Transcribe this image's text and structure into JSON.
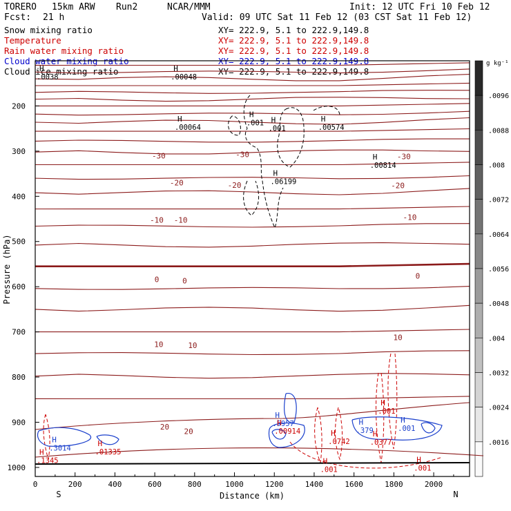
{
  "header": {
    "model": "TORERO",
    "res": "15km ARW",
    "run": "Run2",
    "org": "NCAR/MMM",
    "init": "Init: 12 UTC Fri 10 Feb 12",
    "fcst": "Fcst:",
    "fcst_hours": "21 h",
    "valid": "Valid: 09 UTC Sat 11 Feb 12 (03 CST Sat 11 Feb 12)"
  },
  "legend": [
    {
      "label": "Snow mixing ratio",
      "xy": "XY= 222.9,  5.1 to 222.9,149.8",
      "color": "#000000"
    },
    {
      "label": "Temperature",
      "xy": "XY= 222.9,  5.1 to 222.9,149.8",
      "color": "#cc0000"
    },
    {
      "label": "Rain water mixing ratio",
      "xy": "XY= 222.9,  5.1 to 222.9,149.8",
      "color": "#cc0000"
    },
    {
      "label": "Cloud water mixing ratio",
      "xy": "XY= 222.9,  5.1 to 222.9,149.8",
      "color": "#0000cc"
    },
    {
      "label": "Cloud ice mixing ratio",
      "xy": "XY= 222.9,  5.1 to 222.9,149.8",
      "color": "#000000"
    }
  ],
  "colorbar": {
    "units": "g kg⁻¹",
    "labels": [
      ".0096",
      ".0088",
      ".008",
      ".0072",
      ".0064",
      ".0056",
      ".0048",
      ".004",
      ".0032",
      ".0024",
      ".0016"
    ]
  },
  "chart_data": {
    "type": "cross-section contour",
    "xlabel": "Distance (km)",
    "ylabel": "Pressure (hPa)",
    "xlim": [
      0,
      2180
    ],
    "ylim": [
      1020,
      100
    ],
    "x_ticks": [
      0,
      200,
      400,
      600,
      800,
      1000,
      1200,
      1400,
      1600,
      1800,
      2000
    ],
    "y_ticks": [
      200,
      300,
      400,
      500,
      600,
      700,
      800,
      900,
      1000
    ],
    "x_end_labels": {
      "left": "S",
      "right": "N"
    },
    "temperature_labels": [
      {
        "text": "-30",
        "x": 620,
        "p": 310
      },
      {
        "text": "-30",
        "x": 1040,
        "p": 307
      },
      {
        "text": "-30",
        "x": 1850,
        "p": 312
      },
      {
        "text": "-20",
        "x": 710,
        "p": 370
      },
      {
        "text": "-20",
        "x": 1000,
        "p": 375
      },
      {
        "text": "-20",
        "x": 1820,
        "p": 376
      },
      {
        "text": "-10",
        "x": 610,
        "p": 452
      },
      {
        "text": "-10",
        "x": 730,
        "p": 452
      },
      {
        "text": "-10",
        "x": 1880,
        "p": 446
      },
      {
        "text": "0",
        "x": 610,
        "p": 584
      },
      {
        "text": "0",
        "x": 750,
        "p": 587
      },
      {
        "text": "0",
        "x": 1920,
        "p": 576
      },
      {
        "text": "10",
        "x": 620,
        "p": 727
      },
      {
        "text": "10",
        "x": 790,
        "p": 730
      },
      {
        "text": "10",
        "x": 1820,
        "p": 712
      },
      {
        "text": "20",
        "x": 650,
        "p": 910
      },
      {
        "text": "20",
        "x": 770,
        "p": 920
      }
    ],
    "maxima": [
      {
        "series": "snow",
        "label": ".00048",
        "x": 680,
        "p": 138
      },
      {
        "series": "snow",
        "label": ".00064",
        "x": 700,
        "p": 250
      },
      {
        "series": "snow",
        "label": ".001",
        "x": 1060,
        "p": 240
      },
      {
        "series": "snow",
        "label": ".001",
        "x": 1170,
        "p": 252
      },
      {
        "series": "snow",
        "label": ".00574",
        "x": 1420,
        "p": 250
      },
      {
        "series": "snow",
        "label": ".00814",
        "x": 1680,
        "p": 334
      },
      {
        "series": "snow",
        "label": ".06199",
        "x": 1180,
        "p": 370
      },
      {
        "series": "cloud",
        "label": ".5957",
        "x": 1190,
        "p": 905
      },
      {
        "series": "rain",
        "label": ".00914",
        "x": 1200,
        "p": 922
      },
      {
        "series": "rain",
        "label": ".0742",
        "x": 1470,
        "p": 945
      },
      {
        "series": "cloud",
        "label": ".379",
        "x": 1610,
        "p": 921
      },
      {
        "series": "cloud",
        "label": ".001",
        "x": 1820,
        "p": 916
      },
      {
        "series": "rain",
        "label": ".001",
        "x": 1720,
        "p": 878
      },
      {
        "series": "rain",
        "label": ".0377",
        "x": 1680,
        "p": 947
      },
      {
        "series": "cloud",
        "label": ".3014",
        "x": 70,
        "p": 960
      },
      {
        "series": "rain",
        "label": ".01335",
        "x": 300,
        "p": 968
      },
      {
        "series": "rain",
        "label": ".1345",
        "x": 0,
        "p": 987
      },
      {
        "series": "rain",
        "label": ".001",
        "x": 1430,
        "p": 1007
      },
      {
        "series": "rain",
        "label": ".001",
        "x": 1900,
        "p": 1004
      },
      {
        "series": "snow",
        "label": ".0038",
        "x": -60,
        "p": 138
      }
    ]
  }
}
